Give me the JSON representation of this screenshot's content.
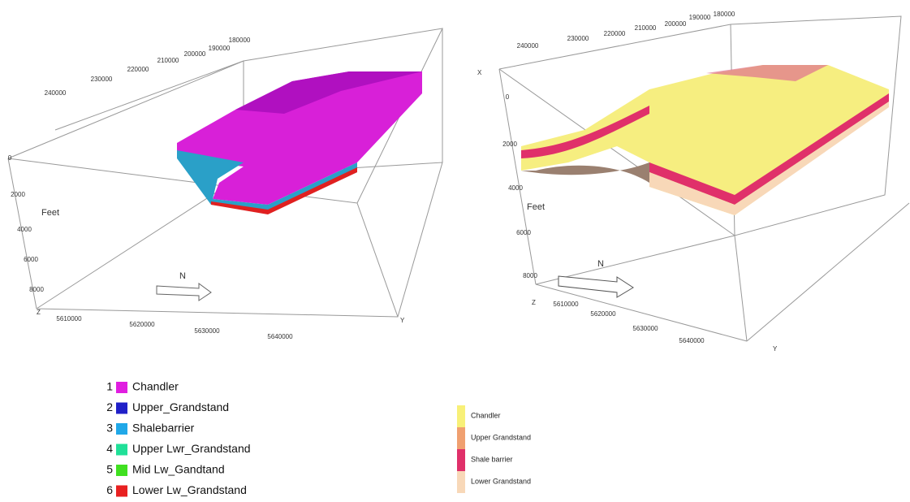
{
  "panels": [
    {
      "x_ticks": [
        240000,
        230000,
        220000,
        210000,
        200000,
        190000,
        180000
      ],
      "depth_label": "Feet",
      "depth_ticks": [
        0,
        2000,
        4000,
        6000,
        8000
      ],
      "z_label": "Z",
      "y_ticks": [
        5610000,
        5620000,
        5630000,
        5640000
      ],
      "y_label": "Y",
      "north_label": "N"
    },
    {
      "x_label": "X",
      "x_ticks": [
        240000,
        230000,
        220000,
        210000,
        200000,
        190000,
        180000
      ],
      "depth_label": "Feet",
      "depth_ticks": [
        0,
        2000,
        4000,
        6000,
        8000
      ],
      "z_label": "Z",
      "y_ticks": [
        5610000,
        5620000,
        5630000,
        5640000
      ],
      "y_label": "Y",
      "north_label": "N"
    }
  ],
  "legend_left": [
    {
      "number": 1,
      "name": "Chandler",
      "color": "#e01ee0"
    },
    {
      "number": 2,
      "name": "Upper_Grandstand",
      "color": "#2020c8"
    },
    {
      "number": 3,
      "name": "Shalebarrier",
      "color": "#20a8e8"
    },
    {
      "number": 4,
      "name": "Upper Lwr_Grandstand",
      "color": "#20e098"
    },
    {
      "number": 5,
      "name": "Mid Lw_Gandtand",
      "color": "#40e020"
    },
    {
      "number": 6,
      "name": "Lower Lw_Grandstand",
      "color": "#e82020"
    }
  ],
  "legend_right": [
    {
      "name": "Chandler",
      "color": "#f8f078"
    },
    {
      "name": "Upper Grandstand",
      "color": "#f0a070"
    },
    {
      "name": "Shale barrier",
      "color": "#e0306a"
    },
    {
      "name": "Lower Grandstand",
      "color": "#f8d8b8"
    }
  ]
}
